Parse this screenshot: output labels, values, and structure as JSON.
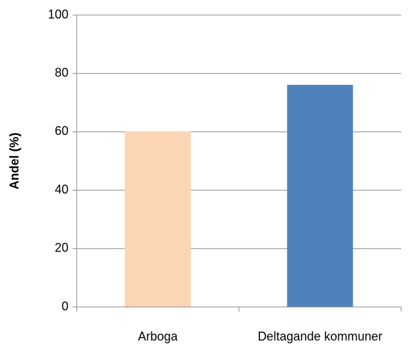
{
  "chart_data": {
    "type": "bar",
    "y_label": "Andel (%)",
    "categories": [
      "Arboga",
      "Deltagande kommuner"
    ],
    "values": [
      60.2,
      76.1
    ],
    "colors": [
      "#fcd5b5",
      "#4f81bd"
    ],
    "ylim": [
      0,
      100
    ],
    "yticks": [
      0,
      20,
      40,
      60,
      80,
      100
    ],
    "grid": true
  }
}
